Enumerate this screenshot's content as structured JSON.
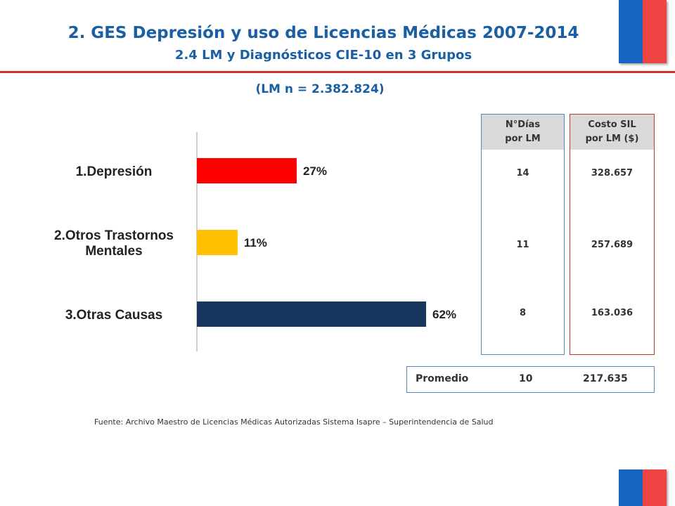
{
  "header": {
    "title": "2. GES Depresión y uso de Licencias Médicas 2007-2014",
    "subtitle": "2.4 LM y Diagnósticos CIE-10 en 3 Grupos"
  },
  "chart_data": {
    "type": "bar",
    "orientation": "horizontal",
    "title": "(LM n = 2.382.824)",
    "categories": [
      [
        "1.Depresión"
      ],
      [
        "2.Otros Trastornos",
        "Mentales"
      ],
      [
        "3.Otras Causas"
      ]
    ],
    "values": [
      27,
      11,
      62
    ],
    "value_labels": [
      "27%",
      "11%",
      "62%"
    ],
    "colors": [
      "#ff0000",
      "#ffc000",
      "#17375e"
    ],
    "xlim": [
      0,
      62
    ],
    "grid": false
  },
  "table": {
    "days_header": [
      "N°Días",
      "por LM"
    ],
    "cost_header": [
      "Costo SIL",
      "por LM ($)"
    ],
    "days": [
      "14",
      "11",
      "8"
    ],
    "costs": [
      "328.657",
      "257.689",
      "163.036"
    ]
  },
  "average": {
    "label": "Promedio",
    "days": "10",
    "cost": "217.635"
  },
  "footer": {
    "source": "Fuente: Archivo Maestro de Licencias Médicas Autorizadas Sistema Isapre – Superintendencia de Salud"
  },
  "colors": {
    "accent": "#1a5fa3",
    "rule": "#d32f2f",
    "flag_blue": "#1565c0",
    "flag_red": "#ef4444"
  }
}
